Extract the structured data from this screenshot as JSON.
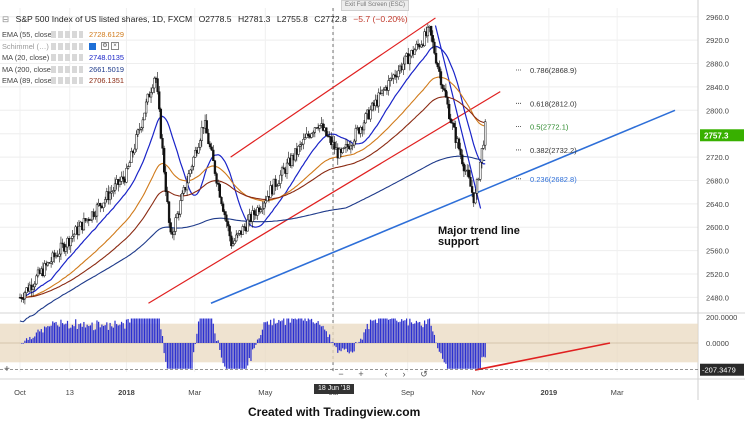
{
  "header": {
    "exit_fullscreen": "Exit Full Screen (ESC)",
    "title": "S&P 500 Index of US listed shares, 1D, FXCM",
    "ohlc": [
      "O2778.5",
      "H2781.3",
      "L2755.8",
      "C2772.8",
      "−5.7 (−0.20%)"
    ]
  },
  "indicators": [
    {
      "name": "EMA (55, close)",
      "value": "2728.6129"
    },
    {
      "name": "Schimmel (…)",
      "value": ""
    },
    {
      "name": "MA (20, close)",
      "value": "2748.0135"
    },
    {
      "name": "MA (200, close)",
      "value": "2661.5019"
    },
    {
      "name": "EMA (89, close)",
      "value": "2706.1351"
    }
  ],
  "fib_labels": [
    "0.786(2868.9)",
    "0.618(2812.0)",
    "0.5(2772.1)",
    "0.382(2732.2)",
    "0.236(2682.8)"
  ],
  "annotation": [
    "Major trend line",
    "support"
  ],
  "price_tag": "2757.3",
  "osc_tag": "-207.3479",
  "date_chip": "18 Jun '18",
  "nav_buttons": [
    "−",
    "+",
    "‹",
    "›",
    "↺"
  ],
  "x_ticks": [
    "Oct",
    "13",
    "2018",
    "Mar",
    "May",
    "Jul",
    "Sep",
    "Nov",
    "2019",
    "Mar"
  ],
  "credit": "Created with Tradingview.com",
  "colors": {
    "candle": "#111111",
    "ema55": "#d07a1a",
    "ma20": "#1a24c8",
    "ma200": "#1e3a8a",
    "ema89": "#8a2a12",
    "channel": "#e02020",
    "support": "#2e6fd8",
    "histogram": "#2a2fd0",
    "band": "#ead9c0",
    "price_tag": "#38b000"
  },
  "chart_data": [
    {
      "type": "line",
      "series_kind": "candlestick",
      "title": "S&P 500 Index of US listed shares, 1D, FXCM",
      "x_ticks": [
        "Oct",
        "13",
        "2018",
        "Mar",
        "May",
        "Jul",
        "Sep",
        "Nov",
        "2019",
        "Mar"
      ],
      "y_ticks": [
        2480,
        2520,
        2560,
        2600,
        2640,
        2680,
        2720,
        2760,
        2800,
        2840,
        2880,
        2920,
        2960
      ],
      "ylim": [
        2455,
        2975
      ],
      "price_path": [
        {
          "t": "2017-10-01",
          "close": 2480
        },
        {
          "t": "2017-11-15",
          "close": 2585
        },
        {
          "t": "2018-01-01",
          "close": 2690
        },
        {
          "t": "2018-01-26",
          "close": 2865
        },
        {
          "t": "2018-02-08",
          "close": 2580
        },
        {
          "t": "2018-03-09",
          "close": 2780
        },
        {
          "t": "2018-04-02",
          "close": 2570
        },
        {
          "t": "2018-05-01",
          "close": 2650
        },
        {
          "t": "2018-06-15",
          "close": 2780
        },
        {
          "t": "2018-07-05",
          "close": 2720
        },
        {
          "t": "2018-08-20",
          "close": 2860
        },
        {
          "t": "2018-09-20",
          "close": 2935
        },
        {
          "t": "2018-10-10",
          "close": 2770
        },
        {
          "t": "2018-10-29",
          "close": 2645
        },
        {
          "t": "2018-11-07",
          "close": 2770
        }
      ],
      "fibonacci": [
        {
          "level": 0.786,
          "price": 2868.9
        },
        {
          "level": 0.618,
          "price": 2812.0
        },
        {
          "level": 0.5,
          "price": 2772.1
        },
        {
          "level": 0.382,
          "price": 2732.2
        },
        {
          "level": 0.236,
          "price": 2682.8
        }
      ],
      "last_price": 2757.3
    },
    {
      "type": "bar",
      "series_kind": "oscillator_histogram",
      "y_ticks": [
        200,
        0,
        -200
      ],
      "ylim": [
        -225,
        225
      ],
      "last_value": -207.3479
    }
  ]
}
